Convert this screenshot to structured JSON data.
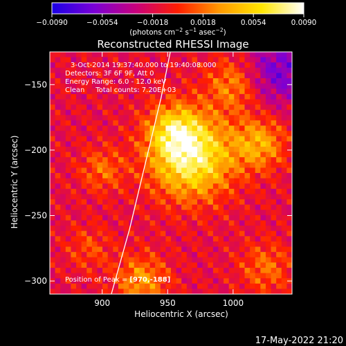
{
  "chart_data": {
    "type": "heatmap",
    "title": "Reconstructed RHESSI Image",
    "xlabel": "Heliocentric X (arcsec)",
    "ylabel": "Heliocentric Y (arcsec)",
    "xlim": [
      860,
      1045
    ],
    "ylim": [
      -310,
      -125
    ],
    "x_ticks": [
      {
        "value": 900,
        "label": "900"
      },
      {
        "value": 950,
        "label": "950"
      },
      {
        "value": 1000,
        "label": "1000"
      }
    ],
    "y_ticks": [
      {
        "value": -150,
        "label": "−150"
      },
      {
        "value": -200,
        "label": "−200"
      },
      {
        "value": -250,
        "label": "−250"
      },
      {
        "value": -300,
        "label": "−300"
      }
    ],
    "colorbar": {
      "range": [
        -0.009,
        0.009
      ],
      "ticks": [
        {
          "value": -0.009,
          "label": "−0.0090"
        },
        {
          "value": -0.0054,
          "label": "−0.0054"
        },
        {
          "value": -0.0018,
          "label": "−0.0018"
        },
        {
          "value": 0.0018,
          "label": "0.0018"
        },
        {
          "value": 0.0054,
          "label": "0.0054"
        },
        {
          "value": 0.009,
          "label": "0.0090"
        }
      ],
      "unit_parts": [
        "(photons cm",
        "−2",
        " s",
        "−1",
        " asec",
        "−2",
        ")"
      ]
    },
    "annotations": [
      "3-Oct-2014 19:37:40.000 to 19:40:08.000",
      "Detectors: 3F 6F 9F, Att 0",
      "Energy Range: 6.0 - 12.0 keV",
      "Clean     Total counts: 7.20E+03"
    ],
    "peak": {
      "label": "Position of Peak = ",
      "value": "[970,-188]"
    },
    "peak_location": [
      970,
      -188
    ],
    "limb_curve": [
      [
        907,
        -310
      ],
      [
        921,
        -260
      ],
      [
        933,
        -210
      ],
      [
        945,
        -160
      ],
      [
        952,
        -125
      ]
    ],
    "sources": [
      {
        "x": 968,
        "y": -205,
        "strength": 1.0,
        "sigma": 22
      },
      {
        "x": 955,
        "y": -185,
        "strength": 0.55,
        "sigma": 14
      },
      {
        "x": 1020,
        "y": -195,
        "strength": 0.55,
        "sigma": 14
      },
      {
        "x": 1000,
        "y": -150,
        "strength": 0.45,
        "sigma": 14
      },
      {
        "x": 930,
        "y": -300,
        "strength": 0.5,
        "sigma": 14
      },
      {
        "x": 1025,
        "y": -290,
        "strength": 0.35,
        "sigma": 14
      },
      {
        "x": 900,
        "y": -215,
        "strength": 0.35,
        "sigma": 12
      },
      {
        "x": 890,
        "y": -275,
        "strength": 0.25,
        "sigma": 12
      },
      {
        "x": 1035,
        "y": -140,
        "strength": -0.5,
        "sigma": 18
      }
    ],
    "colormap": [
      "#1a00e6",
      "#7a00d6",
      "#c8007c",
      "#ff1e00",
      "#ff9a00",
      "#ffe600",
      "#ffffff"
    ],
    "grid": false,
    "legend": "none"
  },
  "footer": {
    "date": "17-May-2022 21:20"
  }
}
